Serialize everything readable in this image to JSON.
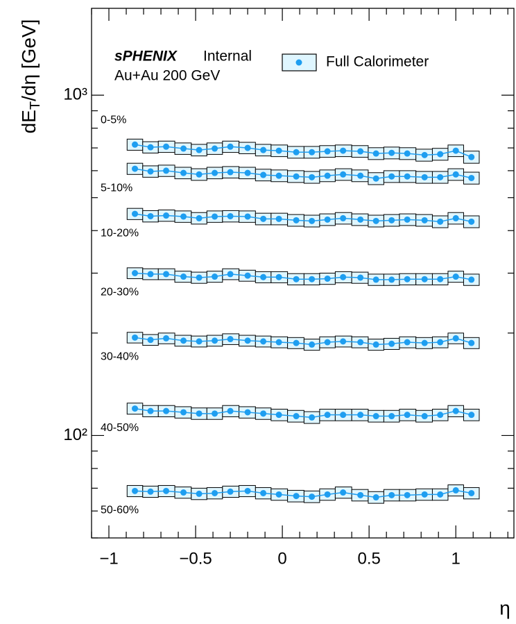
{
  "chart_data": {
    "type": "scatter",
    "annotations": [
      "sPHENIX",
      "Internal",
      "Au+Au 200 GeV"
    ],
    "legend": "Full Calorimeter",
    "ylabel": [
      "dE",
      "T",
      "/dη [GeV]"
    ],
    "xlabel": "η",
    "log_y": true,
    "xlim": [
      -1.1,
      1.335
    ],
    "ylim": [
      50,
      1800
    ],
    "xticks": [
      {
        "value": -1,
        "label": "−1"
      },
      {
        "value": -0.5,
        "label": "−0.5"
      },
      0,
      0.5,
      1
    ],
    "xminor_ticks": [
      -1.1,
      -0.9,
      -0.8,
      -0.7,
      -0.6,
      -0.4,
      -0.3,
      -0.2,
      -0.1,
      0.1,
      0.2,
      0.3,
      0.4,
      0.6,
      0.7,
      0.8,
      0.9,
      1.1,
      1.2,
      1.3
    ],
    "yticks": [
      {
        "value": 100,
        "label": "10²"
      },
      {
        "value": 1000,
        "label": "10³"
      }
    ],
    "yminor_ticks": [
      50,
      60,
      70,
      80,
      90,
      200,
      300,
      400,
      500,
      600,
      700,
      800,
      900
    ],
    "marker_color": "#1e9ef0",
    "error_box_color": "#dff6ff",
    "x": [
      -0.85,
      -0.76,
      -0.67,
      -0.57,
      -0.48,
      -0.39,
      -0.3,
      -0.2,
      -0.11,
      -0.02,
      0.08,
      0.17,
      0.26,
      0.35,
      0.45,
      0.54,
      0.63,
      0.72,
      0.82,
      0.91,
      1.0,
      1.09
    ],
    "series": [
      {
        "name": "0-5%",
        "error": 27,
        "values": [
          716,
          703,
          706,
          697,
          690,
          697,
          706,
          700,
          690,
          687,
          680,
          680,
          684,
          687,
          684,
          674,
          677,
          674,
          667,
          671,
          687,
          658
        ]
      },
      {
        "name": "5-10%",
        "error": 23,
        "values": [
          608,
          597,
          600,
          591,
          585,
          591,
          594,
          591,
          583,
          580,
          577,
          574,
          580,
          585,
          580,
          569,
          577,
          577,
          574,
          574,
          585,
          571
        ]
      },
      {
        "name": "10-20%",
        "error": 17,
        "values": [
          448,
          441,
          443,
          440,
          435,
          440,
          441,
          440,
          433,
          433,
          429,
          427,
          431,
          435,
          431,
          427,
          429,
          431,
          429,
          425,
          435,
          425
        ]
      },
      {
        "name": "20-30%",
        "error": 11,
        "values": [
          300,
          298,
          298,
          293,
          291,
          293,
          298,
          295,
          292,
          292,
          288,
          288,
          289,
          292,
          291,
          287,
          287,
          288,
          288,
          288,
          293,
          287
        ]
      },
      {
        "name": "30-40%",
        "error": 7,
        "values": [
          194,
          191,
          193,
          190,
          189,
          190,
          192,
          190,
          189,
          188,
          187,
          185,
          188,
          189,
          188,
          185,
          186,
          188,
          187,
          188,
          193,
          187
        ]
      },
      {
        "name": "40-50%",
        "error": 4.5,
        "values": [
          120,
          118,
          118,
          117,
          116,
          116,
          118,
          117,
          116,
          115,
          114,
          113,
          115,
          115,
          115,
          114,
          114,
          115,
          114,
          115,
          118,
          115
        ]
      },
      {
        "name": "50-60%",
        "error": 2.6,
        "values": [
          68.7,
          68.4,
          68.7,
          68.0,
          67.4,
          67.7,
          68.4,
          68.7,
          67.7,
          67.1,
          66.4,
          66.1,
          67.1,
          68.0,
          66.8,
          65.8,
          66.8,
          66.8,
          67.1,
          67.1,
          69.0,
          67.7
        ]
      }
    ]
  }
}
